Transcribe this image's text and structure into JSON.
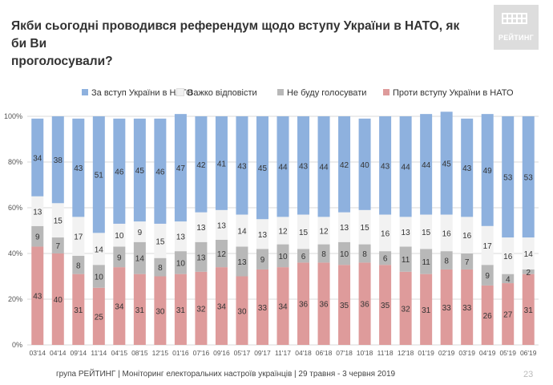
{
  "title_line1": "Якби сьогодні проводився референдум щодо вступу України в НАТО, як би Ви",
  "title_line2": "проголосували?",
  "logo_text": "РЕЙТИНГ",
  "footer": "група РЕЙТИНГ | Моніторинг електоральних настроїв українців | 29 травня - 3 червня 2019",
  "page_number": "23",
  "colors": {
    "for": "#8EB1DE",
    "hard": "#F2F2F2",
    "wont": "#B8B8B8",
    "against": "#DE9B9B",
    "grid": "#D9D9D9",
    "logo": "#DDDDDD"
  },
  "chart_data": {
    "type": "bar",
    "stacked": true,
    "categories": [
      "03'14",
      "04'14",
      "09'14",
      "11'14",
      "04'15",
      "08'15",
      "12'15",
      "01'16",
      "07'16",
      "09'16",
      "05'17",
      "09'17",
      "11'17",
      "04'18",
      "06'18",
      "07'18",
      "10'18",
      "11'18",
      "12'18",
      "01'19",
      "02'19",
      "03'19",
      "04'19",
      "05'19",
      "06'19"
    ],
    "series": [
      {
        "name": "Проти вступу України в НАТО",
        "values": [
          43,
          40,
          31,
          25,
          34,
          31,
          30,
          31,
          32,
          34,
          30,
          33,
          34,
          36,
          36,
          35,
          36,
          35,
          32,
          31,
          33,
          33,
          26,
          27,
          31
        ]
      },
      {
        "name": "Не буду голосувати",
        "values": [
          9,
          7,
          8,
          10,
          9,
          14,
          8,
          10,
          13,
          12,
          13,
          9,
          10,
          6,
          8,
          10,
          8,
          6,
          11,
          11,
          8,
          7,
          9,
          4,
          2
        ]
      },
      {
        "name": "Важко відповісти",
        "values": [
          13,
          15,
          17,
          14,
          10,
          9,
          15,
          13,
          13,
          13,
          14,
          13,
          12,
          15,
          12,
          13,
          15,
          16,
          13,
          15,
          16,
          16,
          17,
          16,
          14
        ]
      },
      {
        "name": "За вступ України в НАТО",
        "values": [
          34,
          38,
          43,
          51,
          46,
          45,
          46,
          47,
          42,
          41,
          43,
          45,
          44,
          43,
          44,
          42,
          40,
          43,
          44,
          44,
          45,
          43,
          49,
          53,
          53
        ]
      }
    ],
    "legend_order": [
      "За вступ України в НАТО",
      "Важко відповісти",
      "Не буду голосувати",
      "Проти вступу України в НАТО"
    ],
    "y_ticks": [
      "0%",
      "20%",
      "40%",
      "60%",
      "80%",
      "100%"
    ],
    "ylim": [
      0,
      100
    ],
    "grid": true,
    "legend_position": "top"
  }
}
